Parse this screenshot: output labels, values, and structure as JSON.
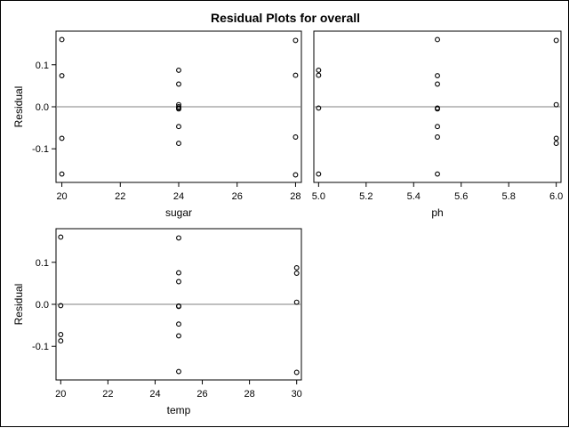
{
  "title": "Residual Plots for overall",
  "chart_data": [
    {
      "type": "scatter",
      "xlabel": "sugar",
      "ylabel": "Residual",
      "xlim": [
        19.8,
        28.2
      ],
      "ylim": [
        -0.18,
        0.18
      ],
      "xticks": [
        "20",
        "22",
        "24",
        "26",
        "28"
      ],
      "yticks": [
        "-0.1",
        "0.0",
        "0.1"
      ],
      "reference_line": 0,
      "x": [
        20,
        20,
        20,
        20,
        24,
        24,
        24,
        24,
        24,
        24,
        24,
        24,
        28,
        28,
        28,
        28
      ],
      "y": [
        0.16,
        0.074,
        -0.075,
        -0.16,
        0.087,
        0.054,
        0.005,
        0.0,
        -0.005,
        -0.047,
        -0.087,
        -0.003,
        0.158,
        0.075,
        -0.072,
        -0.162
      ]
    },
    {
      "type": "scatter",
      "xlabel": "ph",
      "ylabel": "",
      "xlim": [
        4.98,
        6.02
      ],
      "ylim": [
        -0.18,
        0.18
      ],
      "xticks": [
        "5.0",
        "5.2",
        "5.4",
        "5.6",
        "5.8",
        "6.0"
      ],
      "yticks": [],
      "reference_line": 0,
      "x": [
        5.0,
        5.0,
        5.0,
        5.0,
        5.5,
        5.5,
        5.5,
        5.5,
        5.5,
        5.5,
        5.5,
        5.5,
        6.0,
        6.0,
        6.0,
        6.0
      ],
      "y": [
        0.087,
        0.075,
        -0.003,
        -0.16,
        0.16,
        0.074,
        0.054,
        -0.005,
        -0.047,
        -0.072,
        -0.16,
        -0.003,
        0.158,
        0.005,
        -0.075,
        -0.087
      ]
    },
    {
      "type": "scatter",
      "xlabel": "temp",
      "ylabel": "Residual",
      "xlim": [
        19.8,
        30.2
      ],
      "ylim": [
        -0.18,
        0.18
      ],
      "xticks": [
        "20",
        "22",
        "24",
        "26",
        "28",
        "30"
      ],
      "yticks": [
        "-0.1",
        "0.0",
        "0.1"
      ],
      "reference_line": 0,
      "x": [
        20,
        20,
        20,
        20,
        25,
        25,
        25,
        25,
        25,
        25,
        25,
        25,
        30,
        30,
        30,
        30
      ],
      "y": [
        0.16,
        -0.003,
        -0.072,
        -0.087,
        0.158,
        0.075,
        0.054,
        -0.005,
        -0.047,
        -0.075,
        -0.16,
        -0.004,
        0.087,
        0.074,
        0.005,
        -0.162
      ]
    }
  ]
}
